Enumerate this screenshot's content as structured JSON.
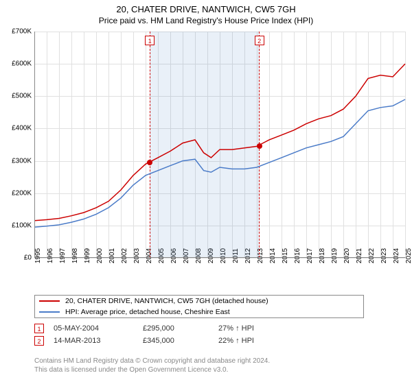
{
  "title": "20, CHATER DRIVE, NANTWICH, CW5 7GH",
  "subtitle": "Price paid vs. HM Land Registry's House Price Index (HPI)",
  "chart": {
    "type": "line",
    "xlim": [
      1995,
      2025
    ],
    "ylim": [
      0,
      700000
    ],
    "y_ticks": [
      0,
      100000,
      200000,
      300000,
      400000,
      500000,
      600000,
      700000
    ],
    "y_tick_labels": [
      "£0",
      "£100K",
      "£200K",
      "£300K",
      "£400K",
      "£500K",
      "£600K",
      "£700K"
    ],
    "x_ticks": [
      1995,
      1996,
      1997,
      1998,
      1999,
      2000,
      2001,
      2002,
      2003,
      2004,
      2005,
      2006,
      2007,
      2008,
      2009,
      2010,
      2011,
      2012,
      2013,
      2014,
      2015,
      2016,
      2017,
      2018,
      2019,
      2020,
      2021,
      2022,
      2023,
      2024,
      2025
    ],
    "background_color": "#ffffff",
    "grid_color": "#e0e0e0",
    "shade_color": "rgba(70,130,200,0.12)",
    "marker_dash_color": "#cc0000",
    "label_fontsize": 10,
    "title_fontsize": 13,
    "series": [
      {
        "name": "price_paid",
        "label": "20, CHATER DRIVE, NANTWICH, CW5 7GH (detached house)",
        "color": "#cc0000",
        "line_width": 1.5,
        "x": [
          1995,
          1996,
          1997,
          1998,
          1999,
          2000,
          2001,
          2002,
          2003,
          2004,
          2005,
          2006,
          2007,
          2008,
          2008.7,
          2009.3,
          2010,
          2011,
          2012,
          2013,
          2014,
          2015,
          2016,
          2017,
          2018,
          2019,
          2020,
          2021,
          2022,
          2023,
          2024,
          2025
        ],
        "y": [
          115000,
          118000,
          122000,
          130000,
          140000,
          155000,
          175000,
          210000,
          255000,
          290000,
          310000,
          330000,
          355000,
          365000,
          325000,
          310000,
          335000,
          335000,
          340000,
          345000,
          365000,
          380000,
          395000,
          415000,
          430000,
          440000,
          460000,
          500000,
          555000,
          565000,
          560000,
          600000
        ]
      },
      {
        "name": "hpi",
        "label": "HPI: Average price, detached house, Cheshire East",
        "color": "#4a7bc8",
        "line_width": 1.5,
        "x": [
          1995,
          1996,
          1997,
          1998,
          1999,
          2000,
          2001,
          2002,
          2003,
          2004,
          2005,
          2006,
          2007,
          2008,
          2008.7,
          2009.3,
          2010,
          2011,
          2012,
          2013,
          2014,
          2015,
          2016,
          2017,
          2018,
          2019,
          2020,
          2021,
          2022,
          2023,
          2024,
          2025
        ],
        "y": [
          95000,
          98000,
          102000,
          110000,
          120000,
          135000,
          155000,
          185000,
          225000,
          255000,
          270000,
          285000,
          300000,
          305000,
          270000,
          265000,
          280000,
          275000,
          275000,
          280000,
          295000,
          310000,
          325000,
          340000,
          350000,
          360000,
          375000,
          415000,
          455000,
          465000,
          470000,
          490000
        ]
      }
    ],
    "sale_markers": [
      {
        "n": "1",
        "x": 2004.35,
        "y": 295000,
        "dot_color": "#cc0000"
      },
      {
        "n": "2",
        "x": 2013.2,
        "y": 345000,
        "dot_color": "#cc0000"
      }
    ]
  },
  "legend": {
    "items": [
      {
        "color": "#cc0000",
        "label": "20, CHATER DRIVE, NANTWICH, CW5 7GH (detached house)"
      },
      {
        "color": "#4a7bc8",
        "label": "HPI: Average price, detached house, Cheshire East"
      }
    ]
  },
  "sales": [
    {
      "n": "1",
      "date": "05-MAY-2004",
      "price": "£295,000",
      "pct": "27% ↑ HPI"
    },
    {
      "n": "2",
      "date": "14-MAR-2013",
      "price": "£345,000",
      "pct": "22% ↑ HPI"
    }
  ],
  "footnote_line1": "Contains HM Land Registry data © Crown copyright and database right 2024.",
  "footnote_line2": "This data is licensed under the Open Government Licence v3.0."
}
